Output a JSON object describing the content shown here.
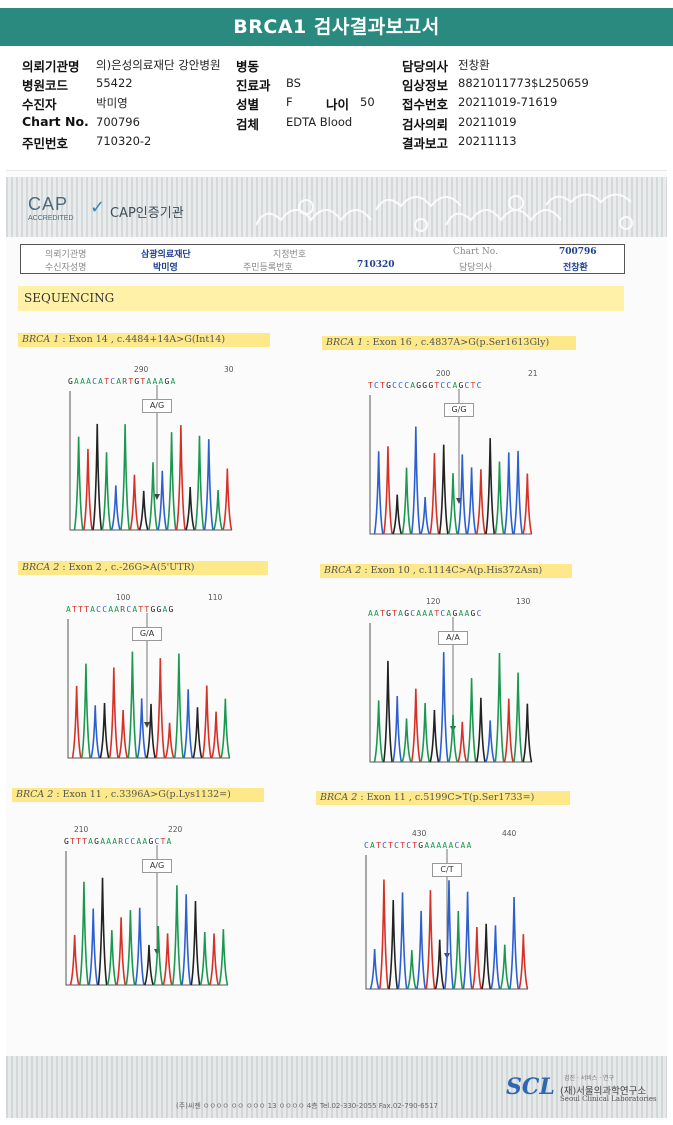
{
  "title": "BRCA1 검사결과보고서",
  "patient": {
    "institution_label": "의뢰기관명",
    "institution": "의)은성의료재단 강안병원",
    "ward_label": "병동",
    "doctor_label": "담당의사",
    "doctor": "전창환",
    "hospital_code_label": "병원코드",
    "hospital_code": "55422",
    "dept_label": "진료과",
    "dept": "BS",
    "clinical_info_label": "임상정보",
    "clinical_info": "8821011773$L250659",
    "patient_label": "수진자",
    "patient_name": "박미영",
    "sex_label": "성별",
    "sex": "F",
    "age_label": "나이",
    "age": "50",
    "receipt_no_label": "접수번호",
    "receipt_no": "20211019-71619",
    "chart_label": "Chart No.",
    "chart_no": "700796",
    "specimen_label": "검체",
    "specimen": "EDTA Blood",
    "requested_label": "검사의뢰",
    "requested": "20211019",
    "resident_label": "주민번호",
    "resident_no": "710320-2",
    "reported_label": "결과보고",
    "reported": "20211113"
  },
  "cap": {
    "logo": "CAP",
    "accredited": "ACCREDITED",
    "text": "CAP인증기관"
  },
  "ref_table": {
    "institution_label": "의뢰기관명",
    "institution": "삼광의료재단",
    "patient_label": "수신자성명",
    "patient": "박미영",
    "ref_no_label": "지정번호",
    "resident_label": "주민등록번호",
    "resident": "710320",
    "chart_label": "Chart No.",
    "chart": "700796",
    "doctor_label": "담당의사",
    "doctor": "전창환"
  },
  "section_title": "SEQUENCING",
  "variants": [
    {
      "gene": "BRCA 1",
      "desc": " : Exon 14 , c.4484+14A>G(Int14)",
      "pos1": "290",
      "pos2": "30",
      "seq": "GAAACATCARTGTAAAGA",
      "call": "A/G",
      "colors": [
        "#1a9850",
        "#d73027",
        "#222222",
        "#1a9850",
        "#2c5fcf"
      ]
    },
    {
      "gene": "BRCA 1",
      "desc": " : Exon 16 , c.4837A>G(p.Ser1613Gly)",
      "pos1": "200",
      "pos2": "21",
      "seq": "TCTGCCCAGGGTCCAGCTC",
      "call": "G/G",
      "colors": [
        "#2c5fcf",
        "#d73027",
        "#222222",
        "#1a9850",
        "#2c5fcf"
      ]
    },
    {
      "gene": "BRCA 2",
      "desc": " : Exon 2 , c.-26G>A(5'UTR)",
      "pos1": "100",
      "pos2": "110",
      "seq": "ATTTACCAARCATTGGAG",
      "call": "G/A",
      "colors": [
        "#d73027",
        "#1a9850",
        "#2c5fcf",
        "#222222",
        "#d73027"
      ]
    },
    {
      "gene": "BRCA 2",
      "desc": " : Exon 10 , c.1114C>A(p.His372Asn)",
      "pos1": "120",
      "pos2": "130",
      "seq": "AATGTAGCAAATCAGAAGC",
      "call": "A/A",
      "colors": [
        "#1a9850",
        "#222222",
        "#2c5fcf",
        "#1a9850",
        "#d73027"
      ]
    },
    {
      "gene": "BRCA 2",
      "desc": " : Exon 11 , c.3396A>G(p.Lys1132=)",
      "pos1": "210",
      "pos2": "220",
      "seq": "GTTTAGAAARCCAAGCTA",
      "call": "A/G",
      "colors": [
        "#d73027",
        "#1a9850",
        "#2c5fcf",
        "#222222",
        "#1a9850"
      ]
    },
    {
      "gene": "BRCA 2",
      "desc": " : Exon 11 , c.5199C>T(p.Ser1733=)",
      "pos1": "430",
      "pos2": "440",
      "seq": "CATCTCTCTGAAAAACAA",
      "call": "C/T",
      "colors": [
        "#2c5fcf",
        "#d73027",
        "#222222",
        "#2c5fcf",
        "#1a9850"
      ]
    }
  ],
  "footer": {
    "address": "(주)씨젠 ㅇㅇㅇㅇ ㅇㅇ ㅇㅇㅇ 13 ㅇㅇㅇㅇ 4층 Tel.02-330-2055 Fax.02-790-6517",
    "scl_tag": "검진 · 서비스 · 연구",
    "scl": "SCL",
    "scl_ko": "(재)서울의과학연구소",
    "scl_en": "Seoul Clinical Laboratories"
  }
}
